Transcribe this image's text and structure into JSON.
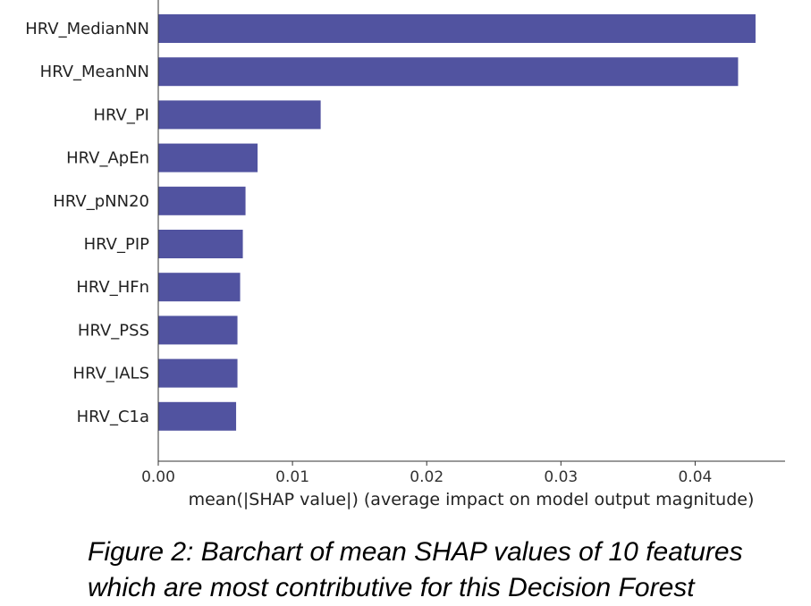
{
  "chart_data": {
    "type": "bar",
    "orientation": "horizontal",
    "categories": [
      "HRV_MedianNN",
      "HRV_MeanNN",
      "HRV_PI",
      "HRV_ApEn",
      "HRV_pNN20",
      "HRV_PIP",
      "HRV_HFn",
      "HRV_PSS",
      "HRV_IALS",
      "HRV_C1a"
    ],
    "values": [
      0.0445,
      0.0432,
      0.0121,
      0.0074,
      0.0065,
      0.0063,
      0.0061,
      0.0059,
      0.0059,
      0.0058
    ],
    "xlabel": "mean(|SHAP value|) (average impact on model output magnitude)",
    "xticks": [
      "0.00",
      "0.01",
      "0.02",
      "0.03",
      "0.04"
    ],
    "xlim": [
      0,
      0.0467
    ],
    "bar_color": "#5153a0",
    "grid": false
  },
  "caption": "Figure 2: Barchart of mean SHAP values of 10 features which are most contributive for this Decision Forest"
}
